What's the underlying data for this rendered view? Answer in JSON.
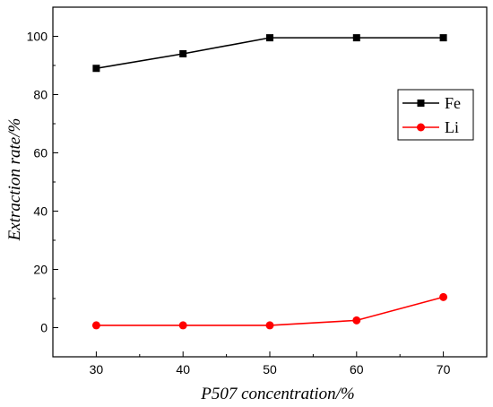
{
  "chart_data": {
    "type": "line",
    "title": "",
    "xlabel": "P507  concentration/%",
    "ylabel": "Extraction rate/%",
    "x": [
      30,
      40,
      50,
      60,
      70
    ],
    "xticks": [
      30,
      40,
      50,
      60,
      70
    ],
    "yticks": [
      0,
      20,
      40,
      60,
      80,
      100
    ],
    "xlim": [
      25,
      75
    ],
    "ylim": [
      -10,
      110
    ],
    "grid": false,
    "legend_position": "right",
    "series": [
      {
        "name": "Fe",
        "values": [
          89,
          94,
          99.5,
          99.5,
          99.5
        ],
        "color": "#000000",
        "marker": "square"
      },
      {
        "name": "Li",
        "values": [
          0.8,
          0.8,
          0.8,
          2.5,
          10.5
        ],
        "color": "#ff0000",
        "marker": "circle"
      }
    ]
  }
}
